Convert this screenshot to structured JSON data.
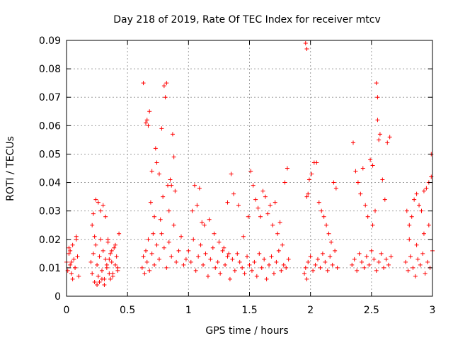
{
  "chart_data": {
    "type": "scatter",
    "title": "Day 218 of 2019, Rate Of TEC Index for receiver mtcv",
    "xlabel": "GPS time / hours",
    "ylabel": "ROTI / TECUs",
    "xlim": [
      0,
      3
    ],
    "ylim": [
      0,
      0.09
    ],
    "x_ticks": [
      0,
      0.5,
      1,
      1.5,
      2,
      2.5,
      3
    ],
    "x_tick_labels": [
      "0",
      "0.5",
      "1",
      "1.5",
      "2",
      "2.5",
      "3"
    ],
    "y_ticks": [
      0,
      0.01,
      0.02,
      0.03,
      0.04,
      0.05,
      0.06,
      0.07,
      0.08,
      0.09
    ],
    "y_tick_labels": [
      "0",
      "0.01",
      "0.02",
      "0.03",
      "0.04",
      "0.05",
      "0.06",
      "0.07",
      "0.08",
      "0.09"
    ],
    "grid": true,
    "marker": "+",
    "marker_color": "#ff0000",
    "series": [
      {
        "name": "ROTI",
        "x": [
          0.0,
          0.01,
          0.02,
          0.03,
          0.04,
          0.05,
          0.06,
          0.07,
          0.08,
          0.09,
          0.1,
          0.02,
          0.05,
          0.08,
          0.03,
          0.07,
          0.04,
          0.2,
          0.21,
          0.22,
          0.23,
          0.24,
          0.25,
          0.26,
          0.27,
          0.28,
          0.29,
          0.3,
          0.31,
          0.32,
          0.33,
          0.34,
          0.35,
          0.36,
          0.37,
          0.38,
          0.39,
          0.4,
          0.41,
          0.42,
          0.43,
          0.22,
          0.24,
          0.26,
          0.28,
          0.3,
          0.32,
          0.25,
          0.27,
          0.29,
          0.31,
          0.21,
          0.23,
          0.35,
          0.37,
          0.4,
          0.42,
          0.34,
          0.36,
          0.38,
          0.33,
          0.62,
          0.63,
          0.64,
          0.65,
          0.66,
          0.67,
          0.68,
          0.7,
          0.72,
          0.74,
          0.76,
          0.78,
          0.8,
          0.82,
          0.84,
          0.86,
          0.88,
          0.9,
          0.92,
          0.94,
          0.96,
          0.98,
          0.63,
          0.65,
          0.66,
          0.68,
          0.69,
          0.72,
          0.74,
          0.77,
          0.79,
          0.8,
          0.81,
          0.82,
          0.83,
          0.84,
          0.86,
          0.87,
          0.88,
          0.7,
          0.73,
          0.76,
          0.78,
          0.85,
          0.89,
          0.67,
          0.71,
          1.0,
          1.02,
          1.04,
          1.06,
          1.08,
          1.1,
          1.12,
          1.14,
          1.16,
          1.18,
          1.2,
          1.22,
          1.24,
          1.26,
          1.28,
          1.3,
          1.32,
          1.34,
          1.36,
          1.38,
          1.4,
          1.42,
          1.44,
          1.46,
          1.48,
          1.5,
          1.03,
          1.05,
          1.07,
          1.09,
          1.13,
          1.17,
          1.21,
          1.25,
          1.29,
          1.33,
          1.35,
          1.37,
          1.41,
          1.45,
          1.49,
          1.32,
          1.11,
          1.52,
          1.54,
          1.56,
          1.58,
          1.6,
          1.62,
          1.64,
          1.66,
          1.68,
          1.7,
          1.72,
          1.74,
          1.76,
          1.78,
          1.8,
          1.82,
          1.51,
          1.53,
          1.55,
          1.57,
          1.59,
          1.61,
          1.63,
          1.65,
          1.67,
          1.69,
          1.71,
          1.73,
          1.75,
          1.77,
          1.79,
          1.81,
          1.95,
          1.96,
          1.97,
          1.98,
          2.0,
          2.02,
          2.04,
          2.06,
          2.08,
          2.1,
          2.12,
          2.14,
          2.16,
          2.18,
          2.2,
          2.22,
          1.97,
          1.99,
          2.01,
          2.03,
          2.05,
          2.07,
          2.09,
          2.11,
          2.13,
          2.15,
          2.17,
          2.19,
          2.21,
          1.96,
          1.97,
          1.98,
          2.34,
          2.36,
          2.38,
          2.4,
          2.42,
          2.44,
          2.46,
          2.48,
          2.5,
          2.52,
          2.54,
          2.56,
          2.58,
          2.6,
          2.62,
          2.64,
          2.66,
          2.35,
          2.37,
          2.39,
          2.41,
          2.43,
          2.45,
          2.47,
          2.49,
          2.51,
          2.53,
          2.55,
          2.57,
          2.59,
          2.61,
          2.63,
          2.65,
          2.54,
          2.55,
          2.56,
          2.51,
          2.78,
          2.8,
          2.82,
          2.84,
          2.86,
          2.88,
          2.9,
          2.92,
          2.94,
          2.96,
          2.98,
          3.0,
          2.79,
          2.81,
          2.83,
          2.85,
          2.87,
          2.89,
          2.91,
          2.93,
          2.95,
          2.97,
          2.99,
          2.81,
          2.87,
          2.93,
          2.97,
          2.99
        ],
        "y": [
          0.012,
          0.009,
          0.015,
          0.011,
          0.008,
          0.018,
          0.013,
          0.01,
          0.02,
          0.014,
          0.007,
          0.017,
          0.006,
          0.021,
          0.016,
          0.01,
          0.012,
          0.012,
          0.008,
          0.015,
          0.005,
          0.018,
          0.011,
          0.007,
          0.014,
          0.02,
          0.009,
          0.016,
          0.006,
          0.013,
          0.01,
          0.019,
          0.008,
          0.015,
          0.012,
          0.007,
          0.017,
          0.011,
          0.014,
          0.009,
          0.022,
          0.029,
          0.034,
          0.033,
          0.03,
          0.032,
          0.028,
          0.004,
          0.005,
          0.006,
          0.004,
          0.025,
          0.021,
          0.013,
          0.016,
          0.018,
          0.01,
          0.02,
          0.006,
          0.008,
          0.011,
          0.01,
          0.014,
          0.008,
          0.016,
          0.012,
          0.02,
          0.009,
          0.015,
          0.011,
          0.018,
          0.013,
          0.022,
          0.017,
          0.01,
          0.019,
          0.014,
          0.025,
          0.012,
          0.016,
          0.021,
          0.011,
          0.013,
          0.075,
          0.061,
          0.062,
          0.065,
          0.033,
          0.028,
          0.047,
          0.027,
          0.035,
          0.074,
          0.07,
          0.075,
          0.039,
          0.03,
          0.039,
          0.057,
          0.049,
          0.044,
          0.052,
          0.043,
          0.059,
          0.041,
          0.037,
          0.06,
          0.022,
          0.016,
          0.012,
          0.02,
          0.009,
          0.014,
          0.018,
          0.011,
          0.015,
          0.007,
          0.013,
          0.017,
          0.01,
          0.012,
          0.008,
          0.016,
          0.011,
          0.014,
          0.006,
          0.013,
          0.009,
          0.015,
          0.012,
          0.01,
          0.008,
          0.014,
          0.011,
          0.03,
          0.039,
          0.032,
          0.038,
          0.025,
          0.027,
          0.022,
          0.019,
          0.017,
          0.015,
          0.043,
          0.036,
          0.032,
          0.021,
          0.028,
          0.033,
          0.026,
          0.009,
          0.012,
          0.007,
          0.015,
          0.01,
          0.013,
          0.006,
          0.011,
          0.014,
          0.008,
          0.012,
          0.016,
          0.009,
          0.011,
          0.01,
          0.013,
          0.044,
          0.039,
          0.034,
          0.031,
          0.028,
          0.037,
          0.035,
          0.029,
          0.032,
          0.025,
          0.033,
          0.022,
          0.026,
          0.018,
          0.04,
          0.045,
          0.008,
          0.01,
          0.006,
          0.012,
          0.014,
          0.009,
          0.011,
          0.013,
          0.01,
          0.015,
          0.012,
          0.009,
          0.014,
          0.011,
          0.016,
          0.01,
          0.035,
          0.041,
          0.043,
          0.047,
          0.047,
          0.033,
          0.03,
          0.028,
          0.025,
          0.022,
          0.019,
          0.04,
          0.038,
          0.089,
          0.087,
          0.036,
          0.011,
          0.013,
          0.009,
          0.015,
          0.012,
          0.01,
          0.014,
          0.011,
          0.016,
          0.013,
          0.009,
          0.012,
          0.015,
          0.01,
          0.013,
          0.011,
          0.014,
          0.054,
          0.044,
          0.04,
          0.036,
          0.045,
          0.032,
          0.028,
          0.048,
          0.046,
          0.03,
          0.062,
          0.057,
          0.041,
          0.034,
          0.054,
          0.056,
          0.075,
          0.07,
          0.055,
          0.025,
          0.012,
          0.009,
          0.014,
          0.01,
          0.007,
          0.013,
          0.011,
          0.015,
          0.008,
          0.012,
          0.01,
          0.016,
          0.03,
          0.025,
          0.028,
          0.034,
          0.036,
          0.032,
          0.03,
          0.037,
          0.038,
          0.04,
          0.042,
          0.02,
          0.018,
          0.022,
          0.025,
          0.05
        ]
      }
    ]
  }
}
